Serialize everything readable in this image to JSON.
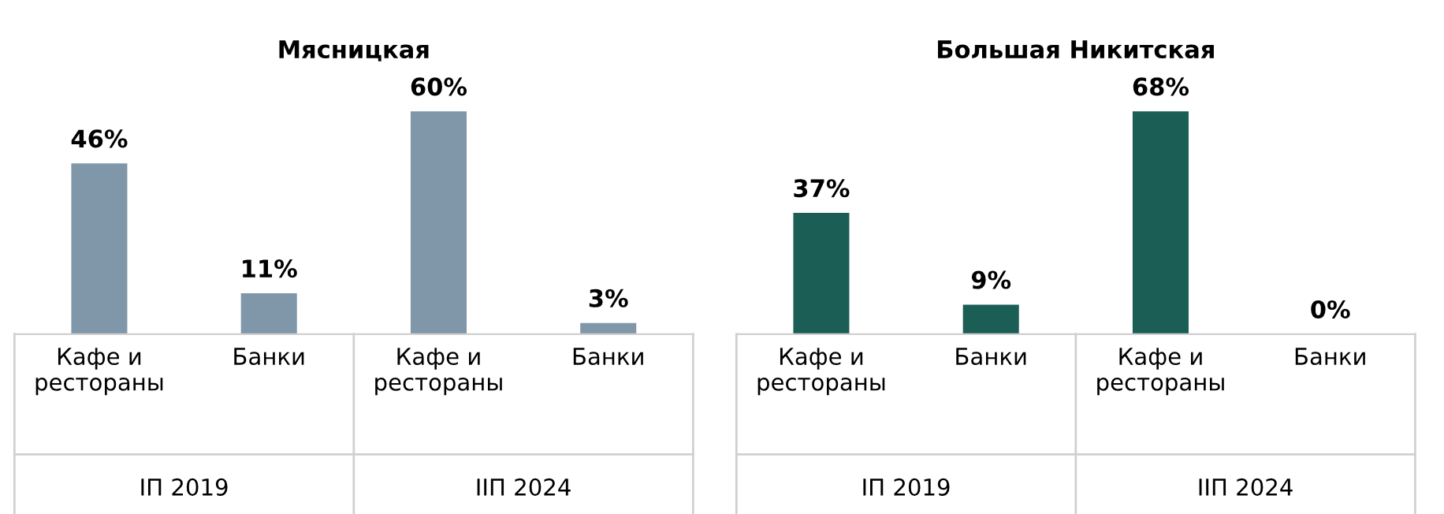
{
  "chart_data": [
    {
      "type": "bar",
      "title": "Мясницкая",
      "categories": [
        "Кафе и\nрестораны",
        "Банки",
        "Кафе и\nрестораны",
        "Банки"
      ],
      "values": [
        46,
        11,
        60,
        3
      ],
      "color": "#7f97a8",
      "data_labels": true,
      "value_labels": [
        "46%",
        "11%",
        "60%",
        "3%"
      ],
      "annotations": [
        "IП 2019",
        "IIП 2024"
      ],
      "tick_labels": "x",
      "grid": false,
      "legend": false
    },
    {
      "type": "bar",
      "title": "Большая Никитская",
      "categories": [
        "Кафе и\nрестораны",
        "Банки",
        "Кафе и\nрестораны",
        "Банки"
      ],
      "values": [
        37,
        9,
        68,
        0
      ],
      "color": "#1a5e55",
      "data_labels": true,
      "value_labels": [
        "37%",
        "9%",
        "68%",
        "0%"
      ],
      "annotations": [
        "IП 2019",
        "IIП 2024"
      ],
      "tick_labels": "x",
      "grid": false,
      "legend": false
    }
  ]
}
